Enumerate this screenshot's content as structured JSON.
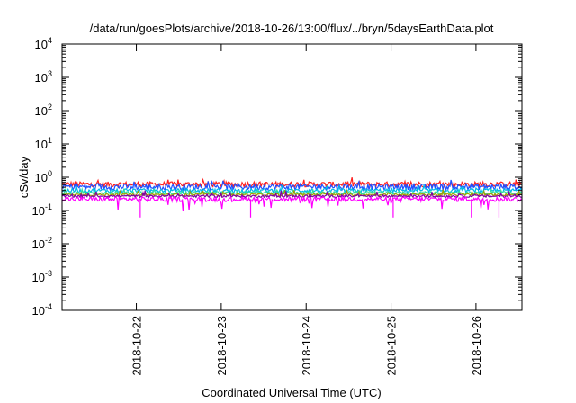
{
  "chart_data": {
    "type": "line",
    "title": "/data/run/goesPlots/archive/2018-10-26/13:00/flux/../bryn/5daysEarthData.plot",
    "xlabel": "Coordinated Universal Time (UTC)",
    "ylabel": "cSv/day",
    "yscale": "log",
    "ylim": [
      0.0001,
      10000
    ],
    "y_ticks": [
      {
        "value": 0.0001,
        "base": "10",
        "exp": "-4"
      },
      {
        "value": 0.001,
        "base": "10",
        "exp": "-3"
      },
      {
        "value": 0.01,
        "base": "10",
        "exp": "-2"
      },
      {
        "value": 0.1,
        "base": "10",
        "exp": "-1"
      },
      {
        "value": 1,
        "base": "10",
        "exp": "0"
      },
      {
        "value": 10,
        "base": "10",
        "exp": "1"
      },
      {
        "value": 100,
        "base": "10",
        "exp": "2"
      },
      {
        "value": 1000,
        "base": "10",
        "exp": "3"
      },
      {
        "value": 10000,
        "base": "10",
        "exp": "4"
      }
    ],
    "xlim": [
      "2018-10-21 03:00",
      "2018-10-26 13:00"
    ],
    "x_ticks": [
      "2018-10-22",
      "2018-10-23",
      "2018-10-24",
      "2018-10-25",
      "2018-10-26"
    ],
    "grid": false,
    "legend": "none",
    "series": [
      {
        "color": "#ff2020",
        "level": 0.62,
        "spread": 0.18
      },
      {
        "color": "#2050ff",
        "level": 0.52,
        "spread": 0.2
      },
      {
        "color": "#00b8e8",
        "level": 0.4,
        "spread": 0.14
      },
      {
        "color": "#30e0a0",
        "level": 0.34,
        "spread": 0.1
      },
      {
        "color": "#a0a000",
        "level": 0.3,
        "spread": 0.08
      },
      {
        "color": "#8000a0",
        "level": 0.27,
        "spread": 0.08
      },
      {
        "color": "#ff00ff",
        "level": 0.22,
        "spread": 0.16
      }
    ]
  }
}
